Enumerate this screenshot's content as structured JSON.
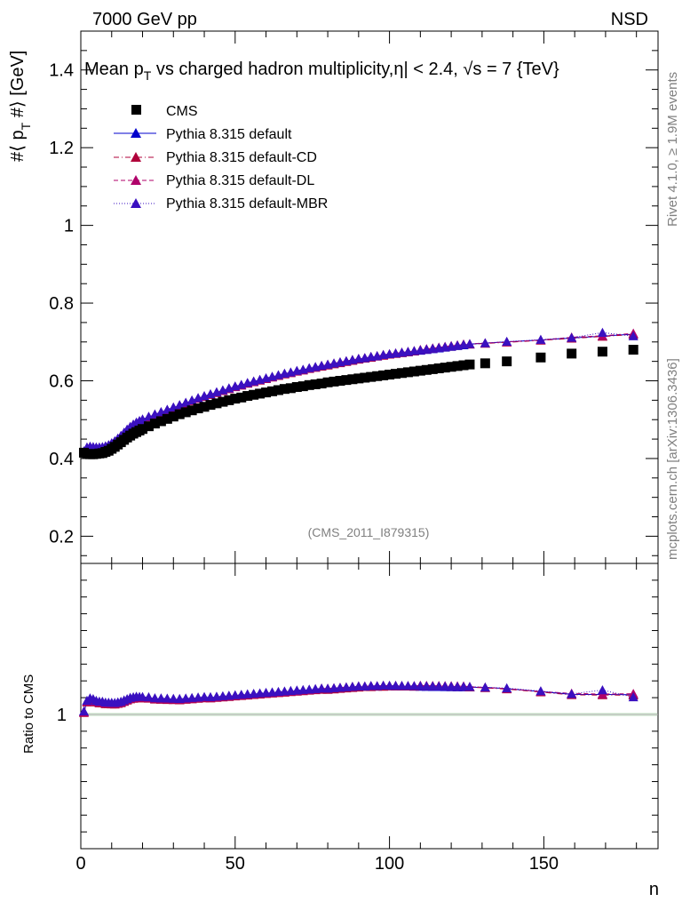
{
  "header": {
    "energy_label": "7000 GeV pp",
    "process_label": "NSD"
  },
  "side_labels": {
    "rivet": "Rivet 4.1.0, ≥ 1.9M events",
    "mcplots": "mcplots.cern.ch [arXiv:1306.3436]"
  },
  "colors": {
    "cms": "#000000",
    "default": "#0000cc",
    "cd": "#b0003a",
    "dl": "#b0006a",
    "mbr": "#3a10c0",
    "ratio_band": "#d8ecd8"
  },
  "chart_data": [
    {
      "type": "scatter",
      "title": "Mean p_T vs charged hadron multiplicity, |η| < 2.4, √s = 7 {TeV}",
      "title_text": {
        "part1": "Mean p",
        "sub1": "T",
        "part2": " vs charged hadron multiplicity,",
        "eta": "η",
        "part3": "| < 2.4, ",
        "sqrt": "√",
        "part4": "s = 7 {TeV}"
      },
      "ylabel": "#⟨ p_T #⟩ [GeV]",
      "ylabel_text": {
        "part1": "#⟨ p",
        "sub": "T",
        "part2": " #⟩ [GeV]"
      },
      "xlabel": "",
      "xlim": [
        0,
        187
      ],
      "ylim": [
        0.13,
        1.5
      ],
      "yticks": [
        0.2,
        0.4,
        0.6,
        0.8,
        1,
        1.2,
        1.4
      ],
      "ytick_labels": [
        "0.2",
        "0.4",
        "0.6",
        "0.8",
        "1",
        "1.2",
        "1.4"
      ],
      "watermark": "(CMS_2011_I879315)",
      "legend": [
        "CMS",
        "Pythia 8.315 default",
        "Pythia 8.315 default-CD",
        "Pythia 8.315 default-DL",
        "Pythia 8.315 default-MBR"
      ],
      "series": [
        {
          "name": "CMS",
          "marker": "square",
          "x": [
            1,
            2,
            3,
            4,
            5,
            6,
            7,
            8,
            9,
            10,
            11,
            12,
            13,
            14,
            15,
            16,
            17,
            18,
            19,
            20,
            22,
            24,
            26,
            28,
            30,
            32,
            34,
            36,
            38,
            40,
            42,
            44,
            46,
            48,
            50,
            52,
            54,
            56,
            58,
            60,
            62,
            64,
            66,
            68,
            70,
            72,
            74,
            76,
            78,
            80,
            82,
            84,
            86,
            88,
            90,
            92,
            94,
            96,
            98,
            100,
            102,
            104,
            106,
            108,
            110,
            112,
            114,
            116,
            118,
            120,
            122,
            124,
            126,
            131,
            138,
            149,
            159,
            169,
            179
          ],
          "y": [
            0.415,
            0.412,
            0.411,
            0.411,
            0.412,
            0.413,
            0.414,
            0.417,
            0.42,
            0.425,
            0.43,
            0.436,
            0.442,
            0.448,
            0.454,
            0.459,
            0.464,
            0.468,
            0.472,
            0.476,
            0.483,
            0.49,
            0.496,
            0.502,
            0.508,
            0.514,
            0.519,
            0.524,
            0.529,
            0.533,
            0.538,
            0.542,
            0.546,
            0.55,
            0.554,
            0.557,
            0.561,
            0.564,
            0.567,
            0.57,
            0.573,
            0.576,
            0.579,
            0.581,
            0.584,
            0.586,
            0.589,
            0.591,
            0.593,
            0.596,
            0.598,
            0.6,
            0.602,
            0.604,
            0.606,
            0.608,
            0.61,
            0.612,
            0.614,
            0.616,
            0.618,
            0.62,
            0.622,
            0.624,
            0.626,
            0.628,
            0.63,
            0.632,
            0.634,
            0.636,
            0.638,
            0.64,
            0.642,
            0.645,
            0.65,
            0.66,
            0.67,
            0.675,
            0.68
          ]
        },
        {
          "name": "Pythia 8.315 default",
          "marker": "triangle",
          "line": "solid",
          "x": [
            1,
            2,
            3,
            4,
            5,
            6,
            7,
            8,
            9,
            10,
            11,
            12,
            13,
            14,
            15,
            16,
            17,
            18,
            19,
            20,
            22,
            24,
            26,
            28,
            30,
            32,
            34,
            36,
            38,
            40,
            42,
            44,
            46,
            48,
            50,
            52,
            54,
            56,
            58,
            60,
            62,
            64,
            66,
            68,
            70,
            72,
            74,
            76,
            78,
            80,
            82,
            84,
            86,
            88,
            90,
            92,
            94,
            96,
            98,
            100,
            102,
            104,
            106,
            108,
            110,
            112,
            114,
            116,
            118,
            120,
            122,
            124,
            126,
            131,
            138,
            149,
            159,
            169,
            179
          ],
          "y": [
            0.418,
            0.428,
            0.43,
            0.429,
            0.428,
            0.428,
            0.429,
            0.431,
            0.434,
            0.439,
            0.444,
            0.451,
            0.458,
            0.466,
            0.474,
            0.481,
            0.487,
            0.492,
            0.496,
            0.5,
            0.507,
            0.513,
            0.519,
            0.525,
            0.531,
            0.537,
            0.543,
            0.549,
            0.555,
            0.56,
            0.565,
            0.57,
            0.575,
            0.58,
            0.585,
            0.589,
            0.594,
            0.598,
            0.602,
            0.606,
            0.61,
            0.614,
            0.618,
            0.621,
            0.625,
            0.628,
            0.632,
            0.635,
            0.638,
            0.641,
            0.644,
            0.647,
            0.65,
            0.653,
            0.656,
            0.658,
            0.661,
            0.663,
            0.666,
            0.668,
            0.67,
            0.672,
            0.674,
            0.676,
            0.678,
            0.68,
            0.682,
            0.684,
            0.686,
            0.688,
            0.69,
            0.692,
            0.694,
            0.697,
            0.7,
            0.705,
            0.71,
            0.715,
            0.72
          ]
        },
        {
          "name": "Pythia 8.315 default-CD",
          "marker": "triangle",
          "line": "dashdot",
          "x": [
            1,
            2,
            3,
            4,
            5,
            6,
            7,
            8,
            9,
            10,
            11,
            12,
            13,
            14,
            15,
            16,
            17,
            18,
            19,
            20,
            22,
            24,
            26,
            28,
            30,
            32,
            34,
            36,
            38,
            40,
            42,
            44,
            46,
            48,
            50,
            52,
            54,
            56,
            58,
            60,
            62,
            64,
            66,
            68,
            70,
            72,
            74,
            76,
            78,
            80,
            82,
            84,
            86,
            88,
            90,
            92,
            94,
            96,
            98,
            100,
            102,
            104,
            106,
            108,
            110,
            112,
            114,
            116,
            118,
            120,
            122,
            124,
            126,
            131,
            138,
            149,
            159,
            169,
            179
          ],
          "y": [
            0.417,
            0.427,
            0.429,
            0.428,
            0.427,
            0.427,
            0.428,
            0.43,
            0.433,
            0.438,
            0.443,
            0.45,
            0.457,
            0.465,
            0.473,
            0.48,
            0.486,
            0.491,
            0.495,
            0.499,
            0.506,
            0.512,
            0.518,
            0.524,
            0.53,
            0.536,
            0.542,
            0.548,
            0.554,
            0.559,
            0.564,
            0.569,
            0.574,
            0.579,
            0.584,
            0.588,
            0.593,
            0.597,
            0.601,
            0.605,
            0.609,
            0.613,
            0.617,
            0.62,
            0.624,
            0.627,
            0.631,
            0.634,
            0.637,
            0.64,
            0.643,
            0.646,
            0.649,
            0.652,
            0.655,
            0.658,
            0.66,
            0.663,
            0.665,
            0.668,
            0.67,
            0.672,
            0.674,
            0.676,
            0.679,
            0.681,
            0.683,
            0.685,
            0.687,
            0.689,
            0.691,
            0.693,
            0.694,
            0.696,
            0.699,
            0.704,
            0.709,
            0.714,
            0.719
          ]
        },
        {
          "name": "Pythia 8.315 default-DL",
          "marker": "triangle",
          "line": "dashed",
          "x": [
            1,
            2,
            3,
            4,
            5,
            6,
            7,
            8,
            9,
            10,
            11,
            12,
            13,
            14,
            15,
            16,
            17,
            18,
            19,
            20,
            22,
            24,
            26,
            28,
            30,
            32,
            34,
            36,
            38,
            40,
            42,
            44,
            46,
            48,
            50,
            52,
            54,
            56,
            58,
            60,
            62,
            64,
            66,
            68,
            70,
            72,
            74,
            76,
            78,
            80,
            82,
            84,
            86,
            88,
            90,
            92,
            94,
            96,
            98,
            100,
            102,
            104,
            106,
            108,
            110,
            112,
            114,
            116,
            118,
            120,
            122,
            124,
            126,
            131,
            138,
            149,
            159,
            169,
            179
          ],
          "y": [
            0.418,
            0.428,
            0.43,
            0.429,
            0.428,
            0.428,
            0.429,
            0.431,
            0.434,
            0.439,
            0.444,
            0.451,
            0.458,
            0.466,
            0.474,
            0.481,
            0.487,
            0.492,
            0.496,
            0.5,
            0.507,
            0.513,
            0.519,
            0.525,
            0.531,
            0.537,
            0.543,
            0.549,
            0.555,
            0.56,
            0.565,
            0.57,
            0.575,
            0.58,
            0.585,
            0.589,
            0.594,
            0.598,
            0.602,
            0.606,
            0.61,
            0.614,
            0.618,
            0.621,
            0.625,
            0.628,
            0.632,
            0.635,
            0.639,
            0.642,
            0.645,
            0.648,
            0.651,
            0.654,
            0.657,
            0.659,
            0.662,
            0.664,
            0.667,
            0.669,
            0.671,
            0.673,
            0.675,
            0.677,
            0.68,
            0.682,
            0.684,
            0.686,
            0.688,
            0.69,
            0.692,
            0.694,
            0.695,
            0.697,
            0.7,
            0.705,
            0.712,
            0.716,
            0.722
          ]
        },
        {
          "name": "Pythia 8.315 default-MBR",
          "marker": "triangle",
          "line": "dotted",
          "x": [
            1,
            2,
            3,
            4,
            5,
            6,
            7,
            8,
            9,
            10,
            11,
            12,
            13,
            14,
            15,
            16,
            17,
            18,
            19,
            20,
            22,
            24,
            26,
            28,
            30,
            32,
            34,
            36,
            38,
            40,
            42,
            44,
            46,
            48,
            50,
            52,
            54,
            56,
            58,
            60,
            62,
            64,
            66,
            68,
            70,
            72,
            74,
            76,
            78,
            80,
            82,
            84,
            86,
            88,
            90,
            92,
            94,
            96,
            98,
            100,
            102,
            104,
            106,
            108,
            110,
            112,
            114,
            116,
            118,
            120,
            122,
            124,
            126,
            131,
            138,
            149,
            159,
            169,
            179
          ],
          "y": [
            0.419,
            0.429,
            0.431,
            0.43,
            0.429,
            0.429,
            0.43,
            0.432,
            0.435,
            0.44,
            0.445,
            0.452,
            0.459,
            0.467,
            0.475,
            0.482,
            0.488,
            0.493,
            0.497,
            0.501,
            0.508,
            0.514,
            0.52,
            0.526,
            0.532,
            0.538,
            0.544,
            0.55,
            0.556,
            0.561,
            0.566,
            0.571,
            0.576,
            0.581,
            0.586,
            0.59,
            0.595,
            0.599,
            0.603,
            0.607,
            0.611,
            0.615,
            0.619,
            0.622,
            0.626,
            0.629,
            0.633,
            0.636,
            0.639,
            0.642,
            0.645,
            0.648,
            0.651,
            0.654,
            0.657,
            0.659,
            0.662,
            0.664,
            0.667,
            0.669,
            0.671,
            0.673,
            0.675,
            0.677,
            0.679,
            0.681,
            0.683,
            0.685,
            0.687,
            0.689,
            0.691,
            0.693,
            0.695,
            0.697,
            0.701,
            0.706,
            0.711,
            0.724,
            0.715
          ]
        }
      ]
    },
    {
      "type": "scatter",
      "title": "",
      "ylabel": "Ratio to CMS",
      "xlabel": "n",
      "xlim": [
        0,
        187
      ],
      "ylim": [
        0.6,
        1.45
      ],
      "xticks": [
        0,
        50,
        100,
        150
      ],
      "xtick_labels": [
        "0",
        "50",
        "100",
        "150"
      ],
      "yticks": [
        1
      ],
      "ytick_labels": [
        "1"
      ],
      "ratio_band": [
        0.995,
        1.005
      ]
    }
  ]
}
